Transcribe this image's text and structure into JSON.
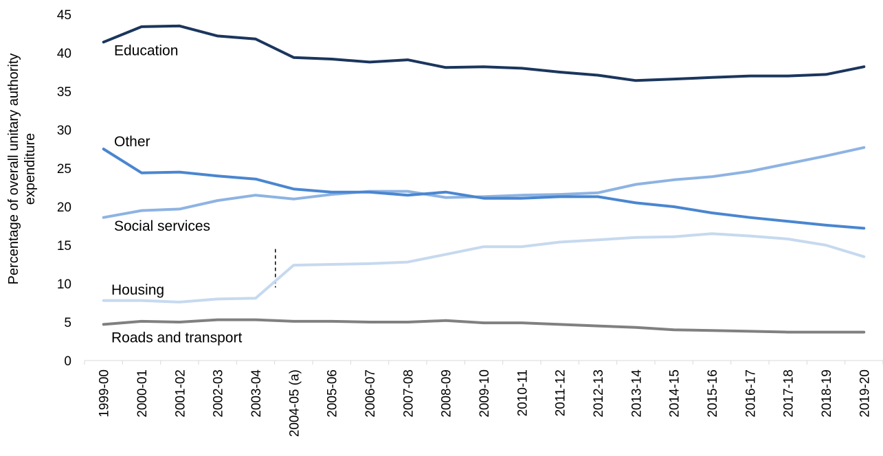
{
  "chart_data": {
    "type": "line",
    "title": "",
    "xlabel": "",
    "ylabel_lines": [
      "Percentage of overall unitary authority",
      "expenditure"
    ],
    "ylim": [
      0,
      45
    ],
    "yticks": [
      0,
      5,
      10,
      15,
      20,
      25,
      30,
      35,
      40,
      45
    ],
    "grid": false,
    "legend": "inline labels",
    "categories": [
      "1999-00",
      "2000-01",
      "2001-02",
      "2002-03",
      "2003-04",
      "2004-05 (a)",
      "2005-06",
      "2006-07",
      "2007-08",
      "2008-09",
      "2009-10",
      "2010-11",
      "2011-12",
      "2012-13",
      "2013-14",
      "2014-15",
      "2015-16",
      "2016-17",
      "2017-18",
      "2018-19",
      "2019-20"
    ],
    "break_marker": {
      "category": "2004-05 (a)",
      "range": [
        9.5,
        14.5
      ]
    },
    "series": [
      {
        "name": "Education",
        "color": "#1b365d",
        "values": [
          41.4,
          43.4,
          43.5,
          42.2,
          41.8,
          39.4,
          39.2,
          38.8,
          39.1,
          38.1,
          38.2,
          38.0,
          37.5,
          37.1,
          36.4,
          36.6,
          36.8,
          37.0,
          37.0,
          37.2,
          38.2
        ]
      },
      {
        "name": "Other",
        "color": "#4a86d0",
        "values": [
          27.5,
          24.4,
          24.5,
          24.0,
          23.6,
          22.3,
          21.9,
          21.9,
          21.5,
          21.9,
          21.1,
          21.1,
          21.3,
          21.3,
          20.5,
          20.0,
          19.2,
          18.6,
          18.1,
          17.6,
          17.2
        ]
      },
      {
        "name": "Social services",
        "color": "#8db3e2",
        "values": [
          18.6,
          19.5,
          19.7,
          20.8,
          21.5,
          21.0,
          21.6,
          22.0,
          22.0,
          21.2,
          21.3,
          21.5,
          21.6,
          21.8,
          22.9,
          23.5,
          23.9,
          24.6,
          25.6,
          26.6,
          27.7
        ]
      },
      {
        "name": "Housing",
        "color": "#c6d9ef",
        "values": [
          7.8,
          7.8,
          7.6,
          8.0,
          8.1,
          12.4,
          12.5,
          12.6,
          12.8,
          13.8,
          14.8,
          14.8,
          15.4,
          15.7,
          16.0,
          16.1,
          16.5,
          16.2,
          15.8,
          15.0,
          13.5
        ]
      },
      {
        "name": "Roads and transport",
        "color": "#808080",
        "values": [
          4.7,
          5.1,
          5.0,
          5.3,
          5.3,
          5.1,
          5.1,
          5.0,
          5.0,
          5.2,
          4.9,
          4.9,
          4.7,
          4.5,
          4.3,
          4.0,
          3.9,
          3.8,
          3.7,
          3.7,
          3.7
        ]
      }
    ]
  }
}
